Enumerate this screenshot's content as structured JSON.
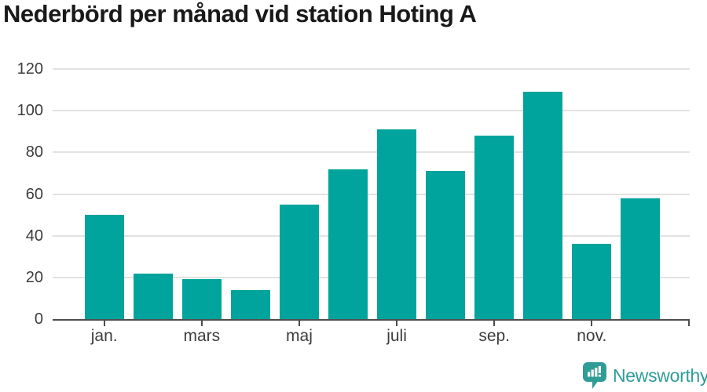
{
  "title": "Nederbörd per månad vid station Hoting A",
  "chart_data": {
    "type": "bar",
    "categories": [
      "jan.",
      "",
      "mars",
      "",
      "maj",
      "",
      "juli",
      "",
      "sep.",
      "",
      "nov.",
      ""
    ],
    "values": [
      50,
      22,
      19,
      14,
      55,
      72,
      91,
      71,
      88,
      109,
      36,
      58
    ],
    "title": "Nederbörd per månad vid station Hoting A",
    "xlabel": "",
    "ylabel": "",
    "ylim": [
      0,
      120
    ],
    "yticks": [
      0,
      20,
      40,
      60,
      80,
      100,
      120
    ],
    "grid": true,
    "legend": "none",
    "bar_color": "#00a49c"
  },
  "footer": {
    "brand": "Newsworthy",
    "logo_icon": "bar-chart-speech-bubble-icon"
  },
  "colors": {
    "bar": "#00a49c",
    "brand_teal": "#2f9d96",
    "axis": "#4d4d4d",
    "gridline": "#e2e2e2",
    "title_text": "#191919",
    "tick_text": "#3d3d3d"
  }
}
